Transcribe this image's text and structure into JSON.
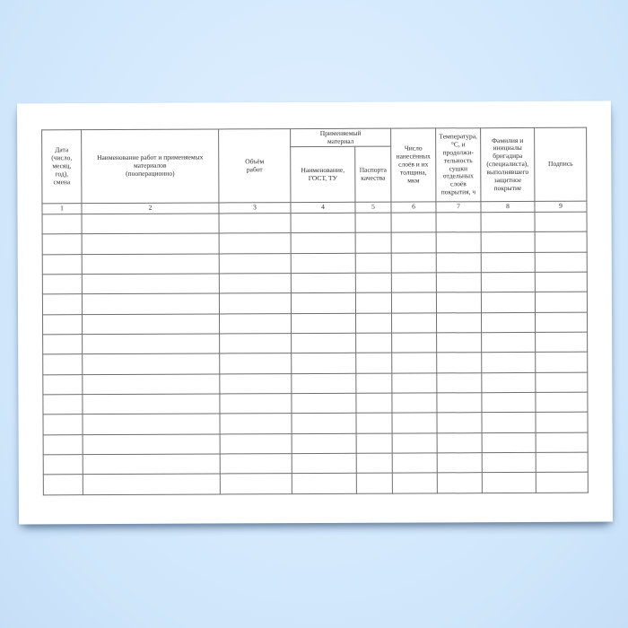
{
  "colors": {
    "background_top": "#d7ebfd",
    "background_bottom": "#c6dff8",
    "sheet": "#ffffff",
    "table_border": "#6f6f6f",
    "text": "#2e2e2e"
  },
  "table": {
    "group_header": {
      "material_label": "Применяемый\nматериал"
    },
    "headers": {
      "date": "Дата\n(число,\nмесяц,\nгод),\nсмена",
      "works": "Наименование работ и применяемых\nматериалов\n(пооперационно)",
      "volume": "Объём\nработ",
      "material_name": "Наименование,\nГОСТ, ТУ",
      "quality_passport": "Паспорта\nкачества",
      "layers": "Число\nнанесённых\nслоёв и их\nтолщина,\nмкм",
      "temperature": "Температура,\n°С, и\nпродолжи-\nтельность\nсушки\nотдельных\nслоёв\nпокрытия, ч",
      "foreman": "Фамилия и\nинициалы\nбригадира\n(специалиста),\nвыполнявшего\nзащитное\nпокрытие",
      "signature": "Подпись"
    },
    "column_numbers": [
      "1",
      "2",
      "3",
      "4",
      "5",
      "6",
      "7",
      "8",
      "9"
    ],
    "empty_row_count": 14,
    "column_count": 9
  }
}
